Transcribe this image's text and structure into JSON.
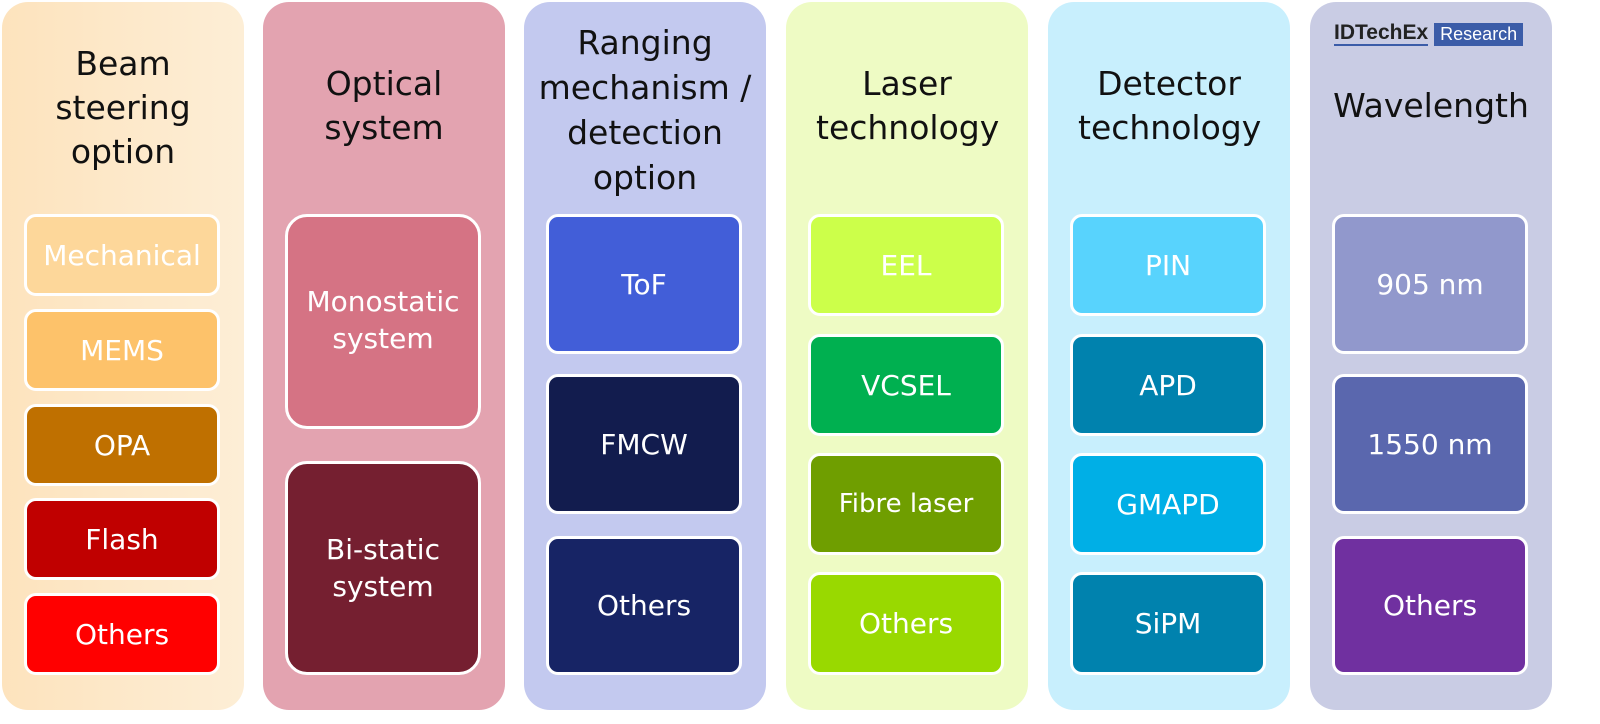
{
  "logo": {
    "brand": "IDTechEx",
    "tag": "Research"
  },
  "columns": [
    {
      "title": "Beam steering option",
      "bg": "#fde9cc",
      "items": [
        {
          "label": "Mechanical",
          "color": "#fdd79a"
        },
        {
          "label": "MEMS",
          "color": "#fdc26a"
        },
        {
          "label": "OPA",
          "color": "#bf7000"
        },
        {
          "label": "Flash",
          "color": "#c00000"
        },
        {
          "label": "Others",
          "color": "#ff0000"
        }
      ]
    },
    {
      "title": "Optical system",
      "bg": "#e3a3b0",
      "items": [
        {
          "label": "Monostatic system",
          "color": "#d57384"
        },
        {
          "label": "Bi-static system",
          "color": "#751f30"
        }
      ]
    },
    {
      "title": "Ranging mechanism / detection option",
      "bg": "#c3c9ef",
      "items": [
        {
          "label": "ToF",
          "color": "#425ed8"
        },
        {
          "label": "FMCW",
          "color": "#121c4e"
        },
        {
          "label": "Others",
          "color": "#172465"
        }
      ]
    },
    {
      "title": "Laser technology",
      "bg": "#eefbc4",
      "items": [
        {
          "label": "EEL",
          "color": "#ccff4a"
        },
        {
          "label": "VCSEL",
          "color": "#00b050"
        },
        {
          "label": "Fibre laser",
          "color": "#6f9e00"
        },
        {
          "label": "Others",
          "color": "#99d900"
        }
      ]
    },
    {
      "title": "Detector technology",
      "bg": "#c8effd",
      "items": [
        {
          "label": "PIN",
          "color": "#58d3fd"
        },
        {
          "label": "APD",
          "color": "#0082ae"
        },
        {
          "label": "GMAPD",
          "color": "#00afe6"
        },
        {
          "label": "SiPM",
          "color": "#0082ae"
        }
      ]
    },
    {
      "title": "Wavelength",
      "bg": "#c9cce4",
      "items": [
        {
          "label": "905 nm",
          "color": "#9198cc"
        },
        {
          "label": "1550 nm",
          "color": "#5a67ae"
        },
        {
          "label": "Others",
          "color": "#7030a0"
        }
      ]
    }
  ]
}
